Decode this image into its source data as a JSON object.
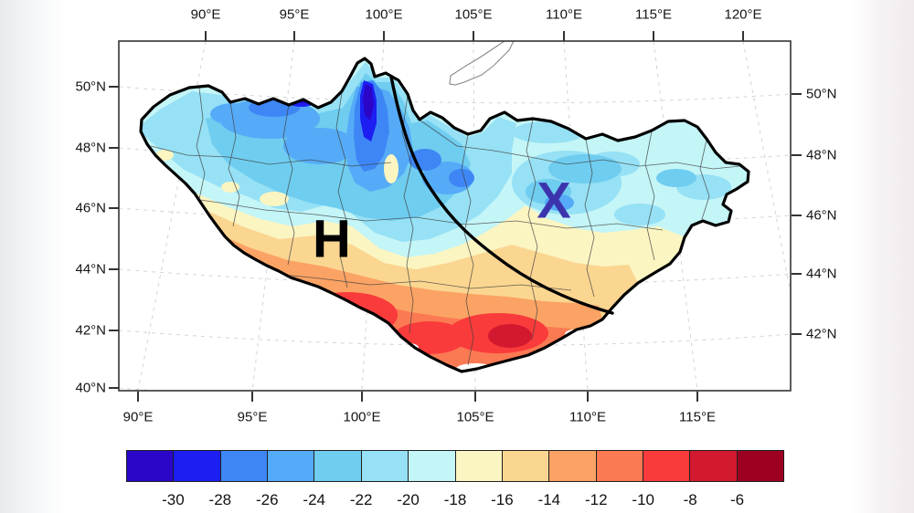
{
  "figure_name": "mongolia-temperature-map",
  "axes": {
    "top": [
      "90°E",
      "95°E",
      "100°E",
      "105°E",
      "110°E",
      "115°E",
      "120°E"
    ],
    "bottom": [
      "90°E",
      "95°E",
      "100°E",
      "105°E",
      "110°E",
      "115°E"
    ],
    "left": [
      "50°N",
      "48°N",
      "46°N",
      "44°N",
      "42°N",
      "40°N"
    ],
    "right": [
      "50°N",
      "48°N",
      "46°N",
      "44°N",
      "42°N"
    ]
  },
  "markers": {
    "h": "H",
    "x": "X",
    "h_color": "#000000",
    "x_color": "#3c34ad"
  },
  "colorbar": {
    "tick_labels": [
      "-30",
      "-28",
      "-26",
      "-24",
      "-22",
      "-20",
      "-18",
      "-16",
      "-14",
      "-12",
      "-10",
      "-8",
      "-6"
    ],
    "colors": [
      "#2b06c8",
      "#1c1ef2",
      "#3e86f5",
      "#55abf7",
      "#6fcdf0",
      "#96e1f5",
      "#c4f5f7",
      "#fbf5c2",
      "#fbd691",
      "#fba364",
      "#fb7a53",
      "#f93b3b",
      "#d31930",
      "#9d0122"
    ]
  },
  "chart_data": {
    "type": "heatmap",
    "title": "",
    "legend_levels": [
      -30,
      -28,
      -26,
      -24,
      -22,
      -20,
      -18,
      -16,
      -14,
      -12,
      -10,
      -8,
      -6
    ],
    "lon_range_deg_e": [
      90,
      120
    ],
    "lat_range_deg_n": [
      40,
      50
    ],
    "notes_visible_text": [
      "H",
      "X"
    ]
  },
  "colors": {
    "frame": "#333333",
    "graticule": "#d4d4d4",
    "country_outline": "#000000",
    "province_border": "#3f3f3f",
    "curve": "#000000",
    "lake_outline": "#8a8a8a"
  }
}
